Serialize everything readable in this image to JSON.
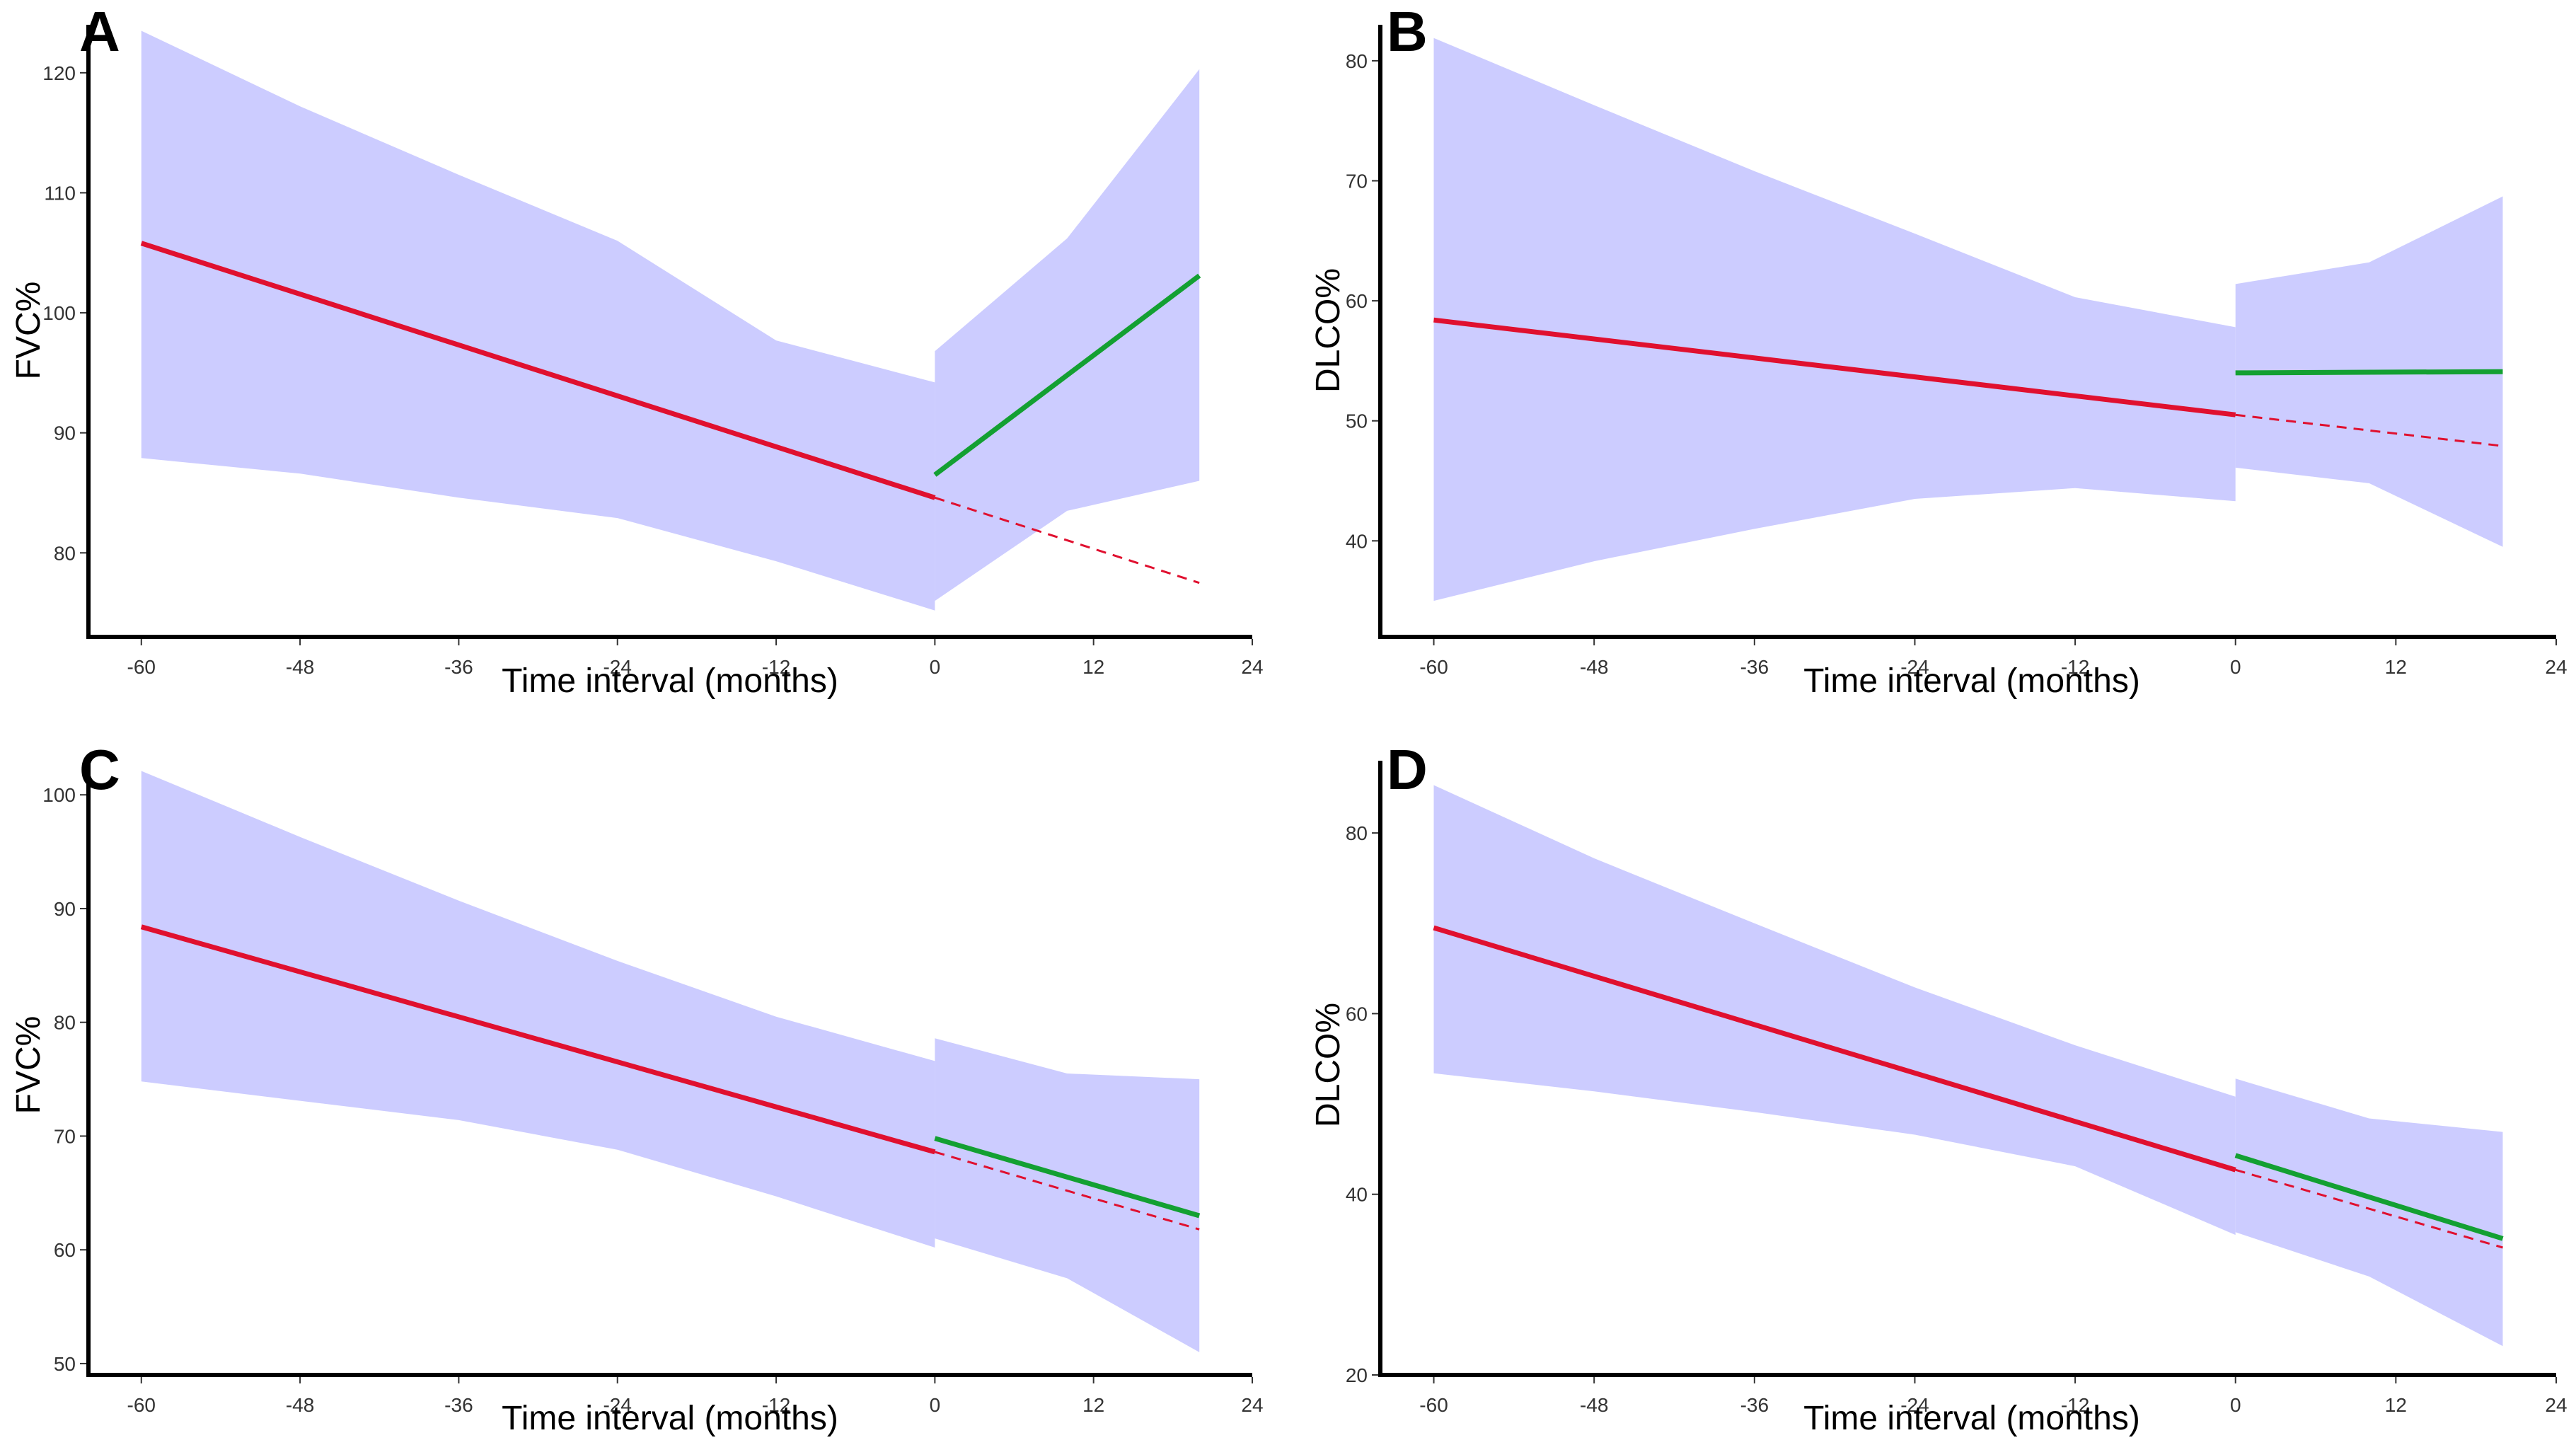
{
  "colors": {
    "band": "#ccccff",
    "pre_fit": "#e0102f",
    "post_fit": "#13a032",
    "projection": "#e0102f",
    "axis": "#000000"
  },
  "chart_data": [
    {
      "type": "line",
      "panel": "A",
      "xlabel": "Time interval (months)",
      "ylabel": "FVC%",
      "xlim": [
        -64,
        24
      ],
      "ylim": [
        73,
        124
      ],
      "xticks": [
        -60,
        -48,
        -36,
        -24,
        -12,
        0,
        12,
        24
      ],
      "yticks": [
        80,
        90,
        100,
        110,
        120
      ],
      "series": [
        {
          "name": "pre",
          "style": "solid",
          "color": "pre_fit",
          "x": [
            -60,
            0
          ],
          "y": [
            105.8,
            84.6
          ]
        },
        {
          "name": "post",
          "style": "solid",
          "color": "post_fit",
          "x": [
            0,
            20
          ],
          "y": [
            86.5,
            103.1
          ]
        },
        {
          "name": "projection",
          "style": "dashed",
          "color": "projection",
          "x": [
            0,
            20
          ],
          "y": [
            84.6,
            77.5
          ]
        }
      ],
      "bands": [
        {
          "name": "pre_ci",
          "x": [
            -60,
            -48,
            -36,
            -24,
            -12,
            0
          ],
          "upper": [
            123.5,
            117.2,
            111.5,
            106.0,
            97.7,
            94.2
          ],
          "lower": [
            87.9,
            86.6,
            84.6,
            82.9,
            79.3,
            75.2
          ]
        },
        {
          "name": "post_ci",
          "x": [
            0,
            10,
            20
          ],
          "upper": [
            96.8,
            106.2,
            120.3
          ],
          "lower": [
            76.0,
            83.5,
            86.0
          ]
        }
      ]
    },
    {
      "type": "line",
      "panel": "B",
      "xlabel": "Time interval (months)",
      "ylabel": "DLCO%",
      "xlim": [
        -64,
        24
      ],
      "ylim": [
        32,
        83
      ],
      "xticks": [
        -60,
        -48,
        -36,
        -24,
        -12,
        0,
        12,
        24
      ],
      "yticks": [
        40,
        50,
        60,
        70,
        80
      ],
      "series": [
        {
          "name": "pre",
          "style": "solid",
          "color": "pre_fit",
          "x": [
            -60,
            0
          ],
          "y": [
            58.4,
            50.5
          ]
        },
        {
          "name": "post",
          "style": "solid",
          "color": "post_fit",
          "x": [
            0,
            20
          ],
          "y": [
            54.0,
            54.1
          ]
        },
        {
          "name": "projection",
          "style": "dashed",
          "color": "projection",
          "x": [
            0,
            20
          ],
          "y": [
            50.5,
            47.9
          ]
        }
      ],
      "bands": [
        {
          "name": "pre_ci",
          "x": [
            -60,
            -48,
            -36,
            -24,
            -12,
            0
          ],
          "upper": [
            81.9,
            76.3,
            70.8,
            65.6,
            60.3,
            57.8
          ],
          "lower": [
            35.0,
            38.3,
            41.0,
            43.5,
            44.4,
            43.3
          ]
        },
        {
          "name": "post_ci",
          "x": [
            0,
            10,
            20
          ],
          "upper": [
            61.4,
            63.2,
            68.7
          ],
          "lower": [
            46.1,
            44.8,
            39.5
          ]
        }
      ]
    },
    {
      "type": "line",
      "panel": "C",
      "xlabel": "Time interval (months)",
      "ylabel": "FVC%",
      "xlim": [
        -64,
        24
      ],
      "ylim": [
        49,
        103
      ],
      "xticks": [
        -60,
        -48,
        -36,
        -24,
        -12,
        0,
        12,
        24
      ],
      "yticks": [
        50,
        60,
        70,
        80,
        90,
        100
      ],
      "series": [
        {
          "name": "pre",
          "style": "solid",
          "color": "pre_fit",
          "x": [
            -60,
            0
          ],
          "y": [
            88.4,
            68.6
          ]
        },
        {
          "name": "post",
          "style": "solid",
          "color": "post_fit",
          "x": [
            0,
            20
          ],
          "y": [
            69.8,
            63.0
          ]
        },
        {
          "name": "projection",
          "style": "dashed",
          "color": "projection",
          "x": [
            0,
            20
          ],
          "y": [
            68.6,
            61.8
          ]
        }
      ],
      "bands": [
        {
          "name": "pre_ci",
          "x": [
            -60,
            -48,
            -36,
            -24,
            -12,
            0
          ],
          "upper": [
            102.1,
            96.3,
            90.7,
            85.4,
            80.5,
            76.6
          ],
          "lower": [
            74.8,
            73.1,
            71.4,
            68.8,
            64.7,
            60.2
          ]
        },
        {
          "name": "post_ci",
          "x": [
            0,
            10,
            20
          ],
          "upper": [
            78.6,
            75.5,
            75.0
          ],
          "lower": [
            61.0,
            57.5,
            51.0
          ]
        }
      ]
    },
    {
      "type": "line",
      "panel": "D",
      "xlabel": "Time interval (months)",
      "ylabel": "DLCO%",
      "xlim": [
        -64,
        24
      ],
      "ylim": [
        20,
        88
      ],
      "xticks": [
        -60,
        -48,
        -36,
        -24,
        -12,
        0,
        12,
        24
      ],
      "yticks": [
        20,
        40,
        60,
        80
      ],
      "series": [
        {
          "name": "pre",
          "style": "solid",
          "color": "pre_fit",
          "x": [
            -60,
            0
          ],
          "y": [
            69.5,
            42.7
          ]
        },
        {
          "name": "post",
          "style": "solid",
          "color": "post_fit",
          "x": [
            0,
            20
          ],
          "y": [
            44.3,
            35.1
          ]
        },
        {
          "name": "projection",
          "style": "dashed",
          "color": "projection",
          "x": [
            0,
            20
          ],
          "y": [
            42.7,
            34.1
          ]
        }
      ],
      "bands": [
        {
          "name": "pre_ci",
          "x": [
            -60,
            -48,
            -36,
            -24,
            -12,
            0
          ],
          "upper": [
            85.3,
            77.2,
            70.0,
            62.9,
            56.5,
            50.8
          ],
          "lower": [
            53.4,
            51.4,
            49.1,
            46.6,
            43.1,
            35.5
          ]
        },
        {
          "name": "post_ci",
          "x": [
            0,
            10,
            20
          ],
          "upper": [
            52.8,
            48.4,
            46.9
          ],
          "lower": [
            35.8,
            30.9,
            23.2
          ]
        }
      ]
    }
  ]
}
